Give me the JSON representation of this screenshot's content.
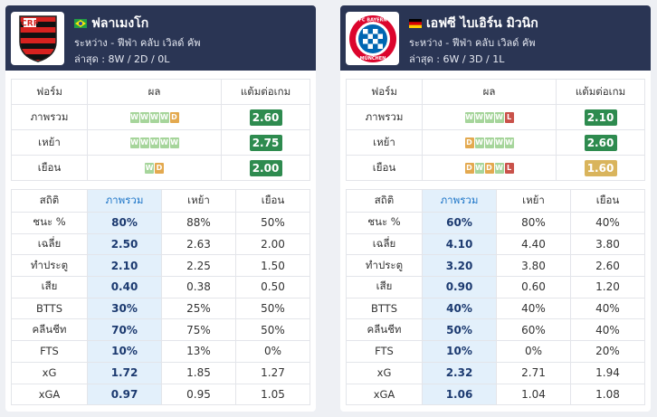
{
  "teams": [
    {
      "name": "ฟลาเมงโก",
      "flag": "brazil-flag-icon",
      "logo": "flamengo-crest-icon",
      "league": "ระหว่าง - ฟีฟ่า คลับ เวิลด์ คัพ",
      "last": "ล่าสุด : 8W / 2D / 0L",
      "form_headers": [
        "ฟอร์ม",
        "ผล",
        "แต้มต่อเกม"
      ],
      "form_rows": [
        {
          "label": "ภาพรวม",
          "results": [
            "W",
            "W",
            "W",
            "W",
            "D"
          ],
          "ppg": "2.60",
          "ppg_color": "green"
        },
        {
          "label": "เหย้า",
          "results": [
            "W",
            "W",
            "W",
            "W",
            "W"
          ],
          "ppg": "2.75",
          "ppg_color": "green"
        },
        {
          "label": "เยือน",
          "results": [
            "W",
            "D"
          ],
          "ppg": "2.00",
          "ppg_color": "green"
        }
      ],
      "stats_headers": [
        "สถิติ",
        "ภาพรวม",
        "เหย้า",
        "เยือน"
      ],
      "stats_rows": [
        {
          "label": "ชนะ %",
          "overall": "80%",
          "home": "88%",
          "away": "50%"
        },
        {
          "label": "เฉลี่ย",
          "overall": "2.50",
          "home": "2.63",
          "away": "2.00"
        },
        {
          "label": "ทำประตู",
          "overall": "2.10",
          "home": "2.25",
          "away": "1.50"
        },
        {
          "label": "เสีย",
          "overall": "0.40",
          "home": "0.38",
          "away": "0.50"
        },
        {
          "label": "BTTS",
          "overall": "30%",
          "home": "25%",
          "away": "50%"
        },
        {
          "label": "คลีนชีท",
          "overall": "70%",
          "home": "75%",
          "away": "50%"
        },
        {
          "label": "FTS",
          "overall": "10%",
          "home": "13%",
          "away": "0%"
        },
        {
          "label": "xG",
          "overall": "1.72",
          "home": "1.85",
          "away": "1.27"
        },
        {
          "label": "xGA",
          "overall": "0.97",
          "home": "0.95",
          "away": "1.05"
        }
      ]
    },
    {
      "name": "เอฟซี ไบเอิร์น มิวนิก",
      "flag": "germany-flag-icon",
      "logo": "bayern-munich-crest-icon",
      "logo_text": "FC BAYERN MÜNCHEN",
      "league": "ระหว่าง - ฟีฟ่า คลับ เวิลด์ คัพ",
      "last": "ล่าสุด : 6W / 3D / 1L",
      "form_headers": [
        "ฟอร์ม",
        "ผล",
        "แต้มต่อเกม"
      ],
      "form_rows": [
        {
          "label": "ภาพรวม",
          "results": [
            "W",
            "W",
            "W",
            "W",
            "L"
          ],
          "ppg": "2.10",
          "ppg_color": "green"
        },
        {
          "label": "เหย้า",
          "results": [
            "D",
            "W",
            "W",
            "W",
            "W"
          ],
          "ppg": "2.60",
          "ppg_color": "green"
        },
        {
          "label": "เยือน",
          "results": [
            "D",
            "W",
            "D",
            "W",
            "L"
          ],
          "ppg": "1.60",
          "ppg_color": "amber"
        }
      ],
      "stats_headers": [
        "สถิติ",
        "ภาพรวม",
        "เหย้า",
        "เยือน"
      ],
      "stats_rows": [
        {
          "label": "ชนะ %",
          "overall": "60%",
          "home": "80%",
          "away": "40%"
        },
        {
          "label": "เฉลี่ย",
          "overall": "4.10",
          "home": "4.40",
          "away": "3.80"
        },
        {
          "label": "ทำประตู",
          "overall": "3.20",
          "home": "3.80",
          "away": "2.60"
        },
        {
          "label": "เสีย",
          "overall": "0.90",
          "home": "0.60",
          "away": "1.20"
        },
        {
          "label": "BTTS",
          "overall": "40%",
          "home": "40%",
          "away": "40%"
        },
        {
          "label": "คลีนชีท",
          "overall": "50%",
          "home": "60%",
          "away": "40%"
        },
        {
          "label": "FTS",
          "overall": "10%",
          "home": "0%",
          "away": "20%"
        },
        {
          "label": "xG",
          "overall": "2.32",
          "home": "2.71",
          "away": "1.94"
        },
        {
          "label": "xGA",
          "overall": "1.06",
          "home": "1.04",
          "away": "1.08"
        }
      ]
    }
  ],
  "colors": {
    "header_bg": "#2a3554",
    "win": "#a6d59b",
    "draw": "#e3a94f",
    "loss": "#c9524a",
    "ppg_green": "#2e8b4f",
    "ppg_amber": "#d9b45c",
    "highlight_col": "#e3f0fb"
  }
}
